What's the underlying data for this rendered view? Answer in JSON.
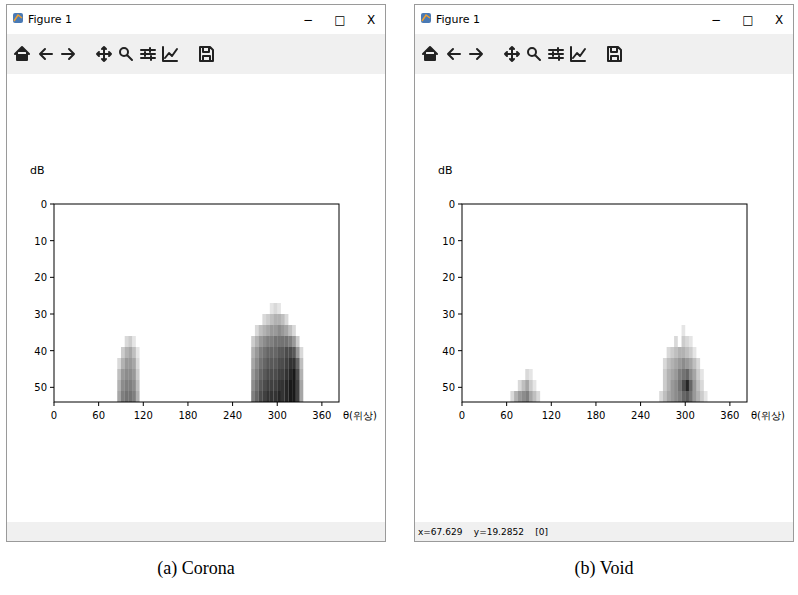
{
  "chart_data": [
    {
      "type": "heatmap",
      "window_title": "Figure 1",
      "window_buttons": [
        "−",
        "□",
        "X"
      ],
      "title": "(a) Corona",
      "xlabel": "θ(위상)",
      "ylabel": "dB",
      "color": "#000000",
      "xlim": [
        0,
        383
      ],
      "ylim": [
        54,
        0
      ],
      "xticks": [
        0,
        60,
        120,
        180,
        240,
        300,
        360
      ],
      "yticks": [
        0,
        10,
        20,
        30,
        40,
        50
      ],
      "x_bin": 5,
      "y_bin": 3,
      "cells": [
        [
          95,
          36,
          15
        ],
        [
          100,
          36,
          20
        ],
        [
          105,
          36,
          10
        ],
        [
          90,
          39,
          20
        ],
        [
          95,
          39,
          30
        ],
        [
          100,
          39,
          35
        ],
        [
          105,
          39,
          25
        ],
        [
          110,
          39,
          10
        ],
        [
          85,
          42,
          15
        ],
        [
          90,
          42,
          30
        ],
        [
          95,
          42,
          40
        ],
        [
          100,
          42,
          40
        ],
        [
          105,
          42,
          35
        ],
        [
          110,
          42,
          15
        ],
        [
          85,
          45,
          25
        ],
        [
          90,
          45,
          40
        ],
        [
          95,
          45,
          45
        ],
        [
          100,
          45,
          45
        ],
        [
          105,
          45,
          40
        ],
        [
          110,
          45,
          20
        ],
        [
          85,
          48,
          30
        ],
        [
          90,
          48,
          45
        ],
        [
          95,
          48,
          50
        ],
        [
          100,
          48,
          50
        ],
        [
          105,
          48,
          45
        ],
        [
          110,
          48,
          25
        ],
        [
          85,
          51,
          35
        ],
        [
          90,
          51,
          50
        ],
        [
          95,
          51,
          55
        ],
        [
          100,
          51,
          55
        ],
        [
          105,
          51,
          50
        ],
        [
          110,
          51,
          30
        ],
        [
          290,
          27,
          10
        ],
        [
          295,
          27,
          15
        ],
        [
          300,
          27,
          10
        ],
        [
          280,
          30,
          15
        ],
        [
          285,
          30,
          20
        ],
        [
          290,
          30,
          25
        ],
        [
          295,
          30,
          30
        ],
        [
          300,
          30,
          30
        ],
        [
          305,
          30,
          25
        ],
        [
          310,
          30,
          15
        ],
        [
          270,
          33,
          15
        ],
        [
          275,
          33,
          25
        ],
        [
          280,
          33,
          30
        ],
        [
          285,
          33,
          35
        ],
        [
          290,
          33,
          40
        ],
        [
          295,
          33,
          40
        ],
        [
          300,
          33,
          45
        ],
        [
          305,
          33,
          40
        ],
        [
          310,
          33,
          35
        ],
        [
          315,
          33,
          25
        ],
        [
          320,
          33,
          15
        ],
        [
          265,
          36,
          20
        ],
        [
          270,
          36,
          30
        ],
        [
          275,
          36,
          40
        ],
        [
          280,
          36,
          45
        ],
        [
          285,
          36,
          50
        ],
        [
          290,
          36,
          50
        ],
        [
          295,
          36,
          55
        ],
        [
          300,
          36,
          55
        ],
        [
          305,
          36,
          55
        ],
        [
          310,
          36,
          55
        ],
        [
          315,
          36,
          50
        ],
        [
          320,
          36,
          40
        ],
        [
          325,
          36,
          20
        ],
        [
          265,
          39,
          30
        ],
        [
          270,
          39,
          40
        ],
        [
          275,
          39,
          50
        ],
        [
          280,
          39,
          55
        ],
        [
          285,
          39,
          60
        ],
        [
          290,
          39,
          60
        ],
        [
          295,
          39,
          60
        ],
        [
          300,
          39,
          65
        ],
        [
          305,
          39,
          65
        ],
        [
          310,
          39,
          70
        ],
        [
          315,
          39,
          70
        ],
        [
          320,
          39,
          65
        ],
        [
          325,
          39,
          40
        ],
        [
          330,
          39,
          15
        ],
        [
          265,
          42,
          35
        ],
        [
          270,
          42,
          45
        ],
        [
          275,
          42,
          55
        ],
        [
          280,
          42,
          60
        ],
        [
          285,
          42,
          65
        ],
        [
          290,
          42,
          65
        ],
        [
          295,
          42,
          65
        ],
        [
          300,
          42,
          70
        ],
        [
          305,
          42,
          70
        ],
        [
          310,
          42,
          75
        ],
        [
          315,
          42,
          80
        ],
        [
          320,
          42,
          80
        ],
        [
          325,
          42,
          60
        ],
        [
          330,
          42,
          25
        ],
        [
          265,
          45,
          40
        ],
        [
          270,
          45,
          50
        ],
        [
          275,
          45,
          60
        ],
        [
          280,
          45,
          65
        ],
        [
          285,
          45,
          70
        ],
        [
          290,
          45,
          70
        ],
        [
          295,
          45,
          70
        ],
        [
          300,
          45,
          75
        ],
        [
          305,
          45,
          75
        ],
        [
          310,
          45,
          80
        ],
        [
          315,
          45,
          85
        ],
        [
          320,
          45,
          90
        ],
        [
          325,
          45,
          70
        ],
        [
          330,
          45,
          30
        ],
        [
          265,
          48,
          45
        ],
        [
          270,
          48,
          55
        ],
        [
          275,
          48,
          65
        ],
        [
          280,
          48,
          70
        ],
        [
          285,
          48,
          75
        ],
        [
          290,
          48,
          75
        ],
        [
          295,
          48,
          75
        ],
        [
          300,
          48,
          80
        ],
        [
          305,
          48,
          80
        ],
        [
          310,
          48,
          85
        ],
        [
          315,
          48,
          90
        ],
        [
          320,
          48,
          90
        ],
        [
          325,
          48,
          75
        ],
        [
          330,
          48,
          35
        ],
        [
          265,
          51,
          50
        ],
        [
          270,
          51,
          60
        ],
        [
          275,
          51,
          70
        ],
        [
          280,
          51,
          75
        ],
        [
          285,
          51,
          80
        ],
        [
          290,
          51,
          80
        ],
        [
          295,
          51,
          80
        ],
        [
          300,
          51,
          85
        ],
        [
          305,
          51,
          80
        ],
        [
          310,
          51,
          85
        ],
        [
          315,
          51,
          90
        ],
        [
          320,
          51,
          90
        ],
        [
          325,
          51,
          75
        ],
        [
          330,
          51,
          35
        ]
      ]
    },
    {
      "type": "heatmap",
      "window_title": "Figure 1",
      "window_buttons": [
        "−",
        "□",
        "X"
      ],
      "title": "(b) Void",
      "status_text": "x=67.629    y=19.2852    [0]",
      "xlabel": "θ(위상)",
      "ylabel": "dB",
      "color": "#000000",
      "xlim": [
        0,
        383
      ],
      "ylim": [
        54,
        0
      ],
      "xticks": [
        0,
        60,
        120,
        180,
        240,
        300,
        360
      ],
      "yticks": [
        0,
        10,
        20,
        30,
        40,
        50
      ],
      "x_bin": 5,
      "y_bin": 3,
      "cells": [
        [
          85,
          45,
          15
        ],
        [
          90,
          45,
          10
        ],
        [
          75,
          48,
          15
        ],
        [
          80,
          48,
          25
        ],
        [
          85,
          48,
          35
        ],
        [
          90,
          48,
          20
        ],
        [
          95,
          48,
          10
        ],
        [
          65,
          51,
          15
        ],
        [
          70,
          51,
          30
        ],
        [
          75,
          51,
          40
        ],
        [
          80,
          51,
          45
        ],
        [
          85,
          51,
          50
        ],
        [
          90,
          51,
          35
        ],
        [
          95,
          51,
          25
        ],
        [
          100,
          51,
          15
        ],
        [
          295,
          33,
          10
        ],
        [
          285,
          36,
          15
        ],
        [
          295,
          36,
          20
        ],
        [
          300,
          36,
          15
        ],
        [
          305,
          36,
          10
        ],
        [
          275,
          39,
          15
        ],
        [
          280,
          39,
          20
        ],
        [
          285,
          39,
          25
        ],
        [
          290,
          39,
          30
        ],
        [
          295,
          39,
          30
        ],
        [
          300,
          39,
          25
        ],
        [
          305,
          39,
          20
        ],
        [
          310,
          39,
          10
        ],
        [
          270,
          42,
          15
        ],
        [
          275,
          42,
          25
        ],
        [
          280,
          42,
          30
        ],
        [
          285,
          42,
          35
        ],
        [
          290,
          42,
          40
        ],
        [
          295,
          42,
          45
        ],
        [
          300,
          42,
          40
        ],
        [
          305,
          42,
          35
        ],
        [
          310,
          42,
          25
        ],
        [
          315,
          42,
          15
        ],
        [
          270,
          45,
          20
        ],
        [
          275,
          45,
          30
        ],
        [
          280,
          45,
          35
        ],
        [
          285,
          45,
          40
        ],
        [
          290,
          45,
          50
        ],
        [
          295,
          45,
          55
        ],
        [
          300,
          45,
          60
        ],
        [
          305,
          45,
          45
        ],
        [
          310,
          45,
          35
        ],
        [
          315,
          45,
          20
        ],
        [
          320,
          45,
          10
        ],
        [
          270,
          48,
          20
        ],
        [
          275,
          48,
          30
        ],
        [
          280,
          48,
          40
        ],
        [
          285,
          48,
          45
        ],
        [
          290,
          48,
          55
        ],
        [
          295,
          48,
          70
        ],
        [
          300,
          48,
          85
        ],
        [
          305,
          48,
          60
        ],
        [
          310,
          48,
          40
        ],
        [
          315,
          48,
          25
        ],
        [
          320,
          48,
          15
        ],
        [
          265,
          51,
          15
        ],
        [
          270,
          51,
          25
        ],
        [
          275,
          51,
          35
        ],
        [
          280,
          51,
          40
        ],
        [
          285,
          51,
          45
        ],
        [
          290,
          51,
          50
        ],
        [
          295,
          51,
          60
        ],
        [
          300,
          51,
          65
        ],
        [
          305,
          51,
          55
        ],
        [
          310,
          51,
          40
        ],
        [
          315,
          51,
          30
        ],
        [
          320,
          51,
          20
        ],
        [
          325,
          51,
          10
        ]
      ]
    }
  ]
}
